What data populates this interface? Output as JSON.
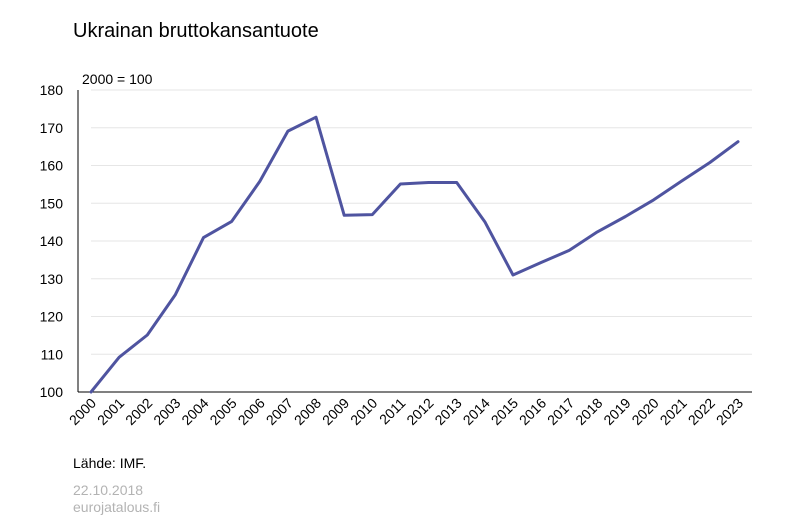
{
  "title": "Ukrainan bruttokansantuote",
  "source": "Lähde: IMF.",
  "date": "22.10.2018",
  "site": "eurojatalous.fi",
  "colors": {
    "line": "#4f54a0",
    "grid": "#e6e6e6",
    "footer": "#b3b3b3"
  },
  "chart_data": {
    "type": "line",
    "title": "Ukrainan bruttokansantuote",
    "unit_label": "2000 = 100",
    "xlabel": "",
    "ylabel": "",
    "ylim": [
      100,
      180
    ],
    "yticks": [
      100,
      110,
      120,
      130,
      140,
      150,
      160,
      170,
      180
    ],
    "grid": true,
    "categories": [
      "2000",
      "2001",
      "2002",
      "2003",
      "2004",
      "2005",
      "2006",
      "2007",
      "2008",
      "2009",
      "2010",
      "2011",
      "2012",
      "2013",
      "2014",
      "2015",
      "2016",
      "2017",
      "2018",
      "2019",
      "2020",
      "2021",
      "2022",
      "2023"
    ],
    "series": [
      {
        "values": [
          100,
          109.2,
          115.1,
          125.8,
          140.9,
          145.2,
          155.8,
          169.1,
          172.8,
          146.8,
          147.0,
          155.1,
          155.5,
          155.5,
          145.1,
          131.0,
          134.3,
          137.5,
          142.4,
          146.5,
          150.9,
          155.9,
          160.8,
          166.3
        ]
      }
    ]
  }
}
